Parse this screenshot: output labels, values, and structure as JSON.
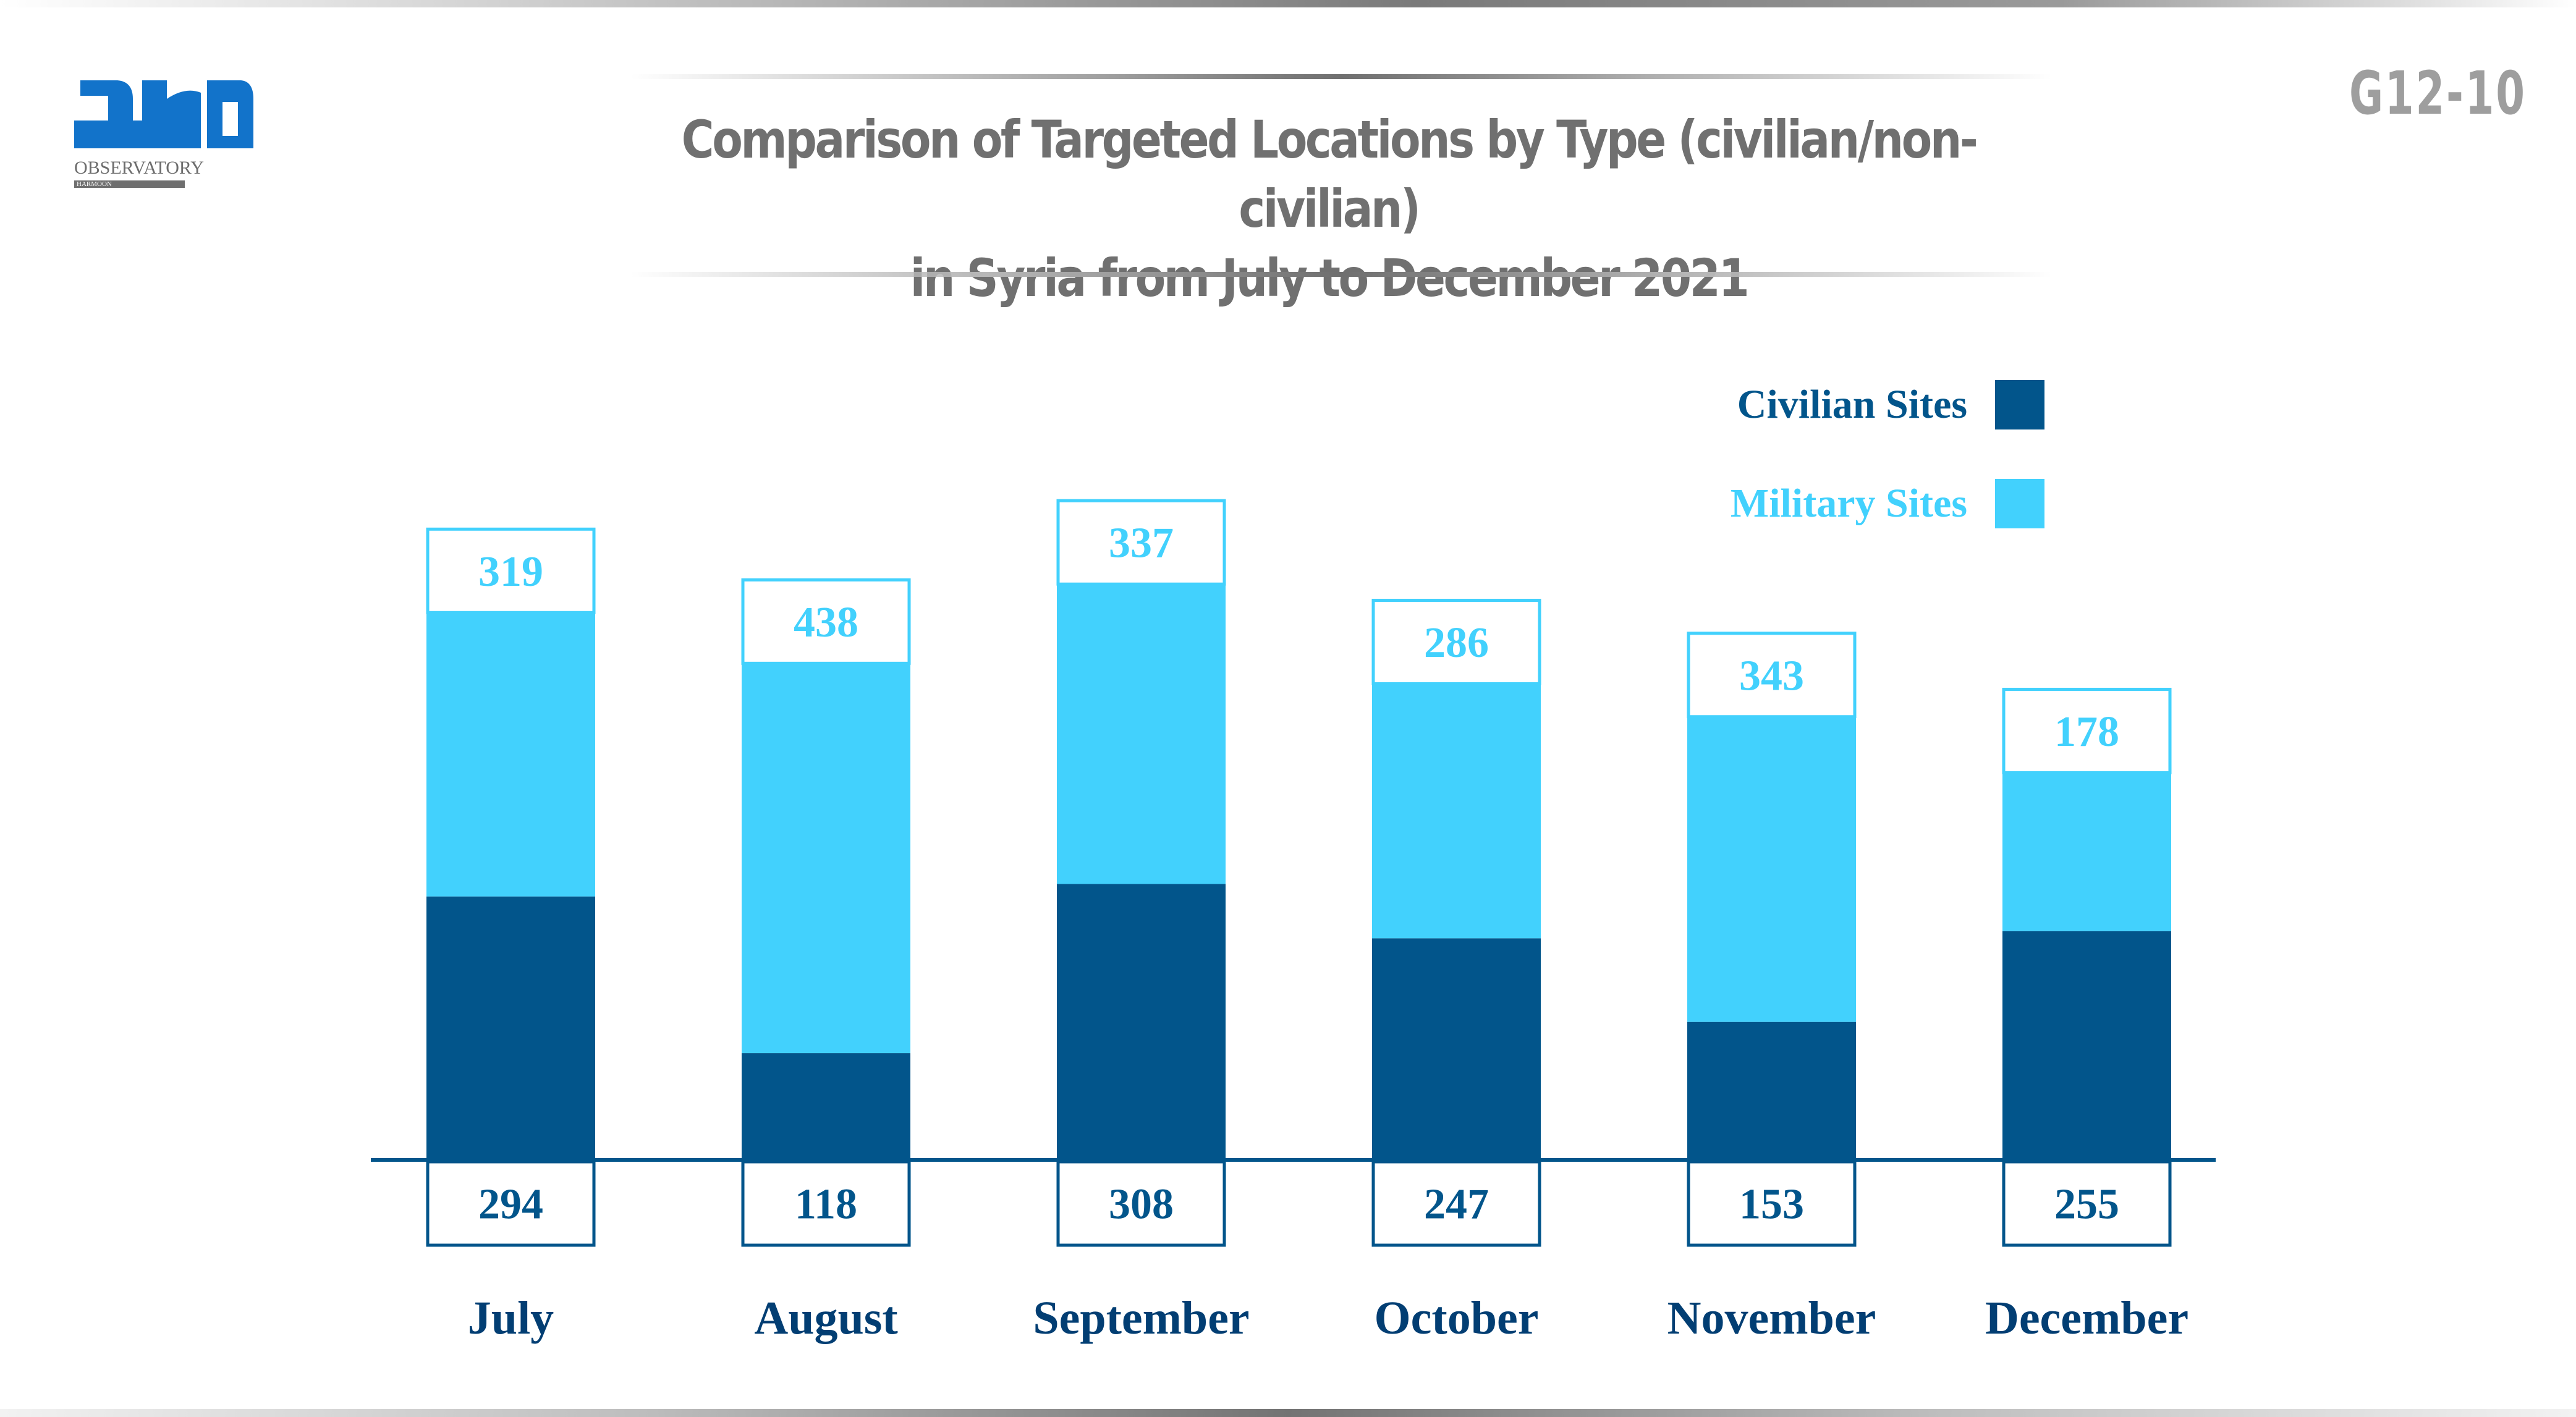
{
  "header": {
    "title_line1": "Comparison of Targeted Locations by Type (civilian/non-civilian)",
    "title_line2": "in Syria from July to December 2021",
    "code": "G12-10"
  },
  "logo": {
    "arabic_text": "مرصد",
    "arabic_sub": "حرمون",
    "english_text": "OBSERVATORY",
    "english_sub": "HARMOON"
  },
  "colors": {
    "civilian": "#02558B",
    "military": "#42D1FD",
    "title": "#707070",
    "code": "#9E9E9E",
    "logo_blue": "#1273CA"
  },
  "chart_data": {
    "type": "bar",
    "stacked": true,
    "title": "Comparison of Targeted Locations by Type (civilian/non-civilian) in Syria from July to December 2021",
    "xlabel": "",
    "ylabel": "",
    "categories": [
      "July",
      "August",
      "September",
      "October",
      "November",
      "December"
    ],
    "series": [
      {
        "name": "Civilian Sites",
        "color": "#02558B",
        "values": [
          294,
          118,
          308,
          247,
          153,
          255
        ]
      },
      {
        "name": "Military Sites",
        "color": "#42D1FD",
        "values": [
          319,
          438,
          337,
          286,
          343,
          178
        ]
      }
    ],
    "legend": {
      "position": "top-right",
      "entries": [
        "Civilian Sites",
        "Military Sites"
      ]
    },
    "grid": false,
    "ylim": [
      0,
      800
    ]
  }
}
